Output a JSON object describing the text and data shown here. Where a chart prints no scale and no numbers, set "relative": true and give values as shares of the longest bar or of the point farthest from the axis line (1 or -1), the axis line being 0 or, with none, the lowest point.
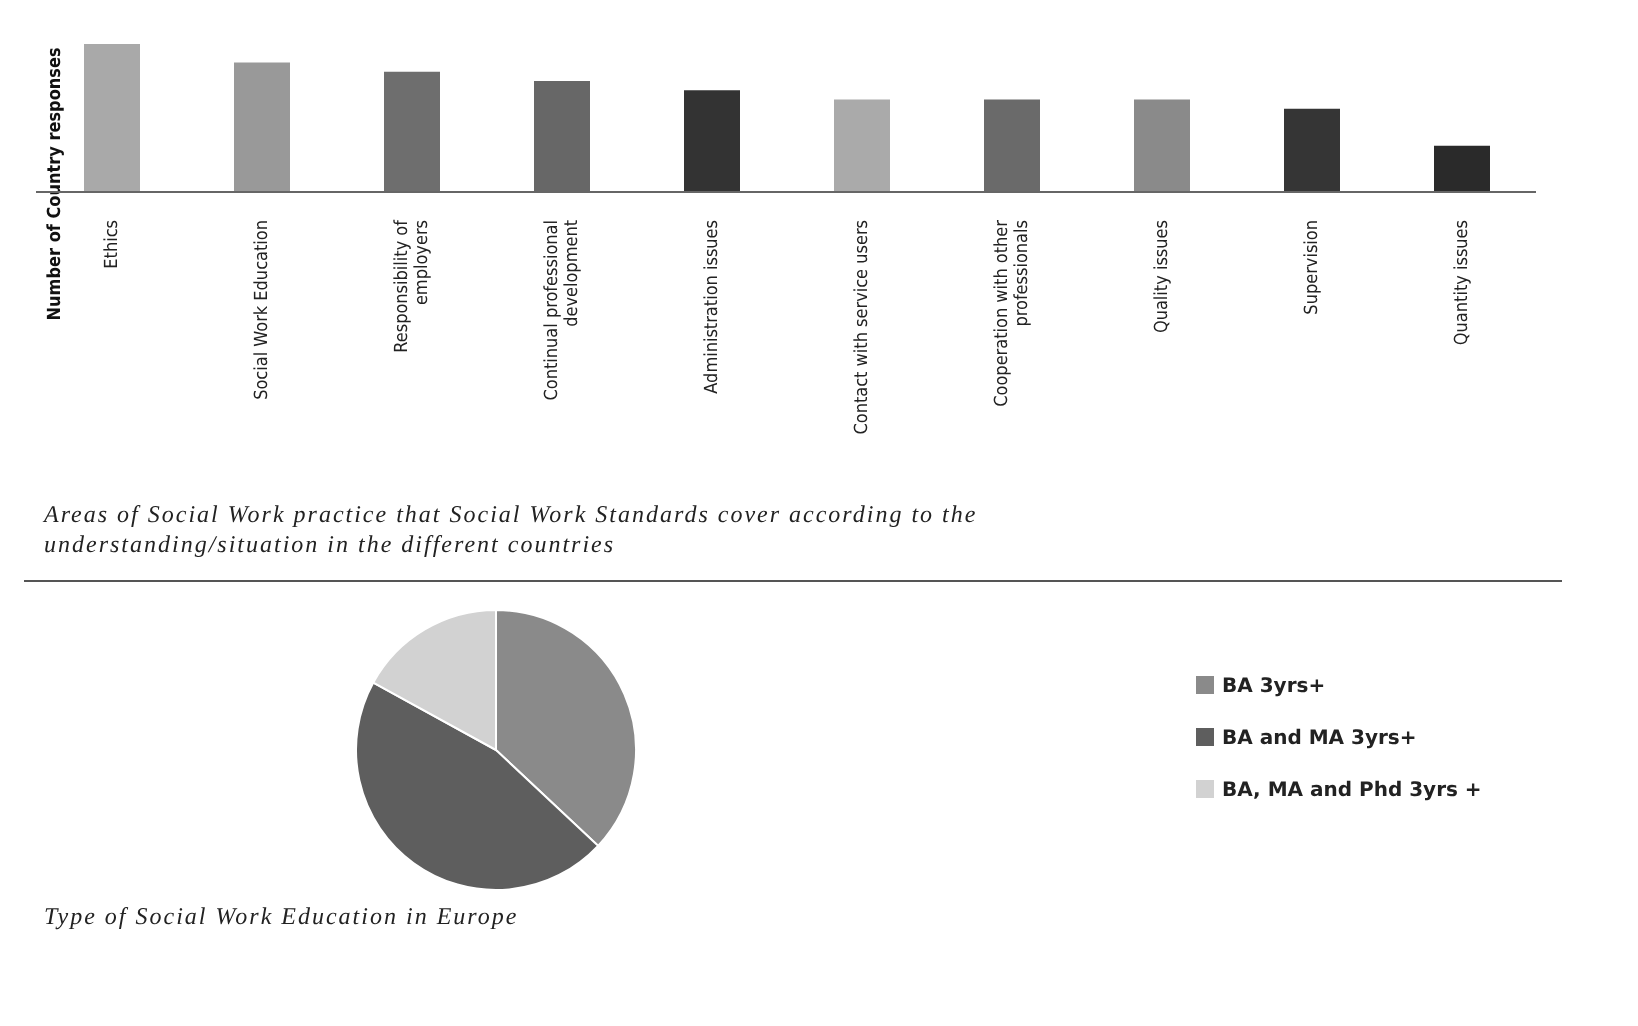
{
  "chart_data": [
    {
      "type": "bar",
      "title": "Areas of Social Work practice that Social Work Standards cover according to the understanding/situation in the different countries",
      "ylabel": "Number of Country responses",
      "relative": true,
      "legend": false,
      "categories": [
        "Ethics",
        "Social Work Education",
        "Responsibility of employers",
        "Continual professional development",
        "Administration issues",
        "Contact with service users",
        "Cooperation with other professionals",
        "Quality issues",
        "Supervision",
        "Quantity issues"
      ],
      "values": [
        1,
        0.875,
        0.8125,
        0.75,
        0.6875,
        0.625,
        0.625,
        0.625,
        0.5625,
        0.3125
      ],
      "colors": [
        "#a9a9a9",
        "#999999",
        "#6e6e6e",
        "#676767",
        "#333333",
        "#aaaaaa",
        "#6a6a6a",
        "#8a8a8a",
        "#353535",
        "#2a2a2a"
      ]
    },
    {
      "type": "pie",
      "title": "Type of Social Work Education in Europe",
      "legend": "right",
      "categories": [
        "BA 3yrs+",
        "BA and MA 3yrs+",
        "BA, MA and Phd 3yrs +"
      ],
      "values": [
        37,
        46,
        17
      ],
      "colors": [
        "#8a8a8a",
        "#5e5e5e",
        "#d2d2d2"
      ]
    }
  ]
}
